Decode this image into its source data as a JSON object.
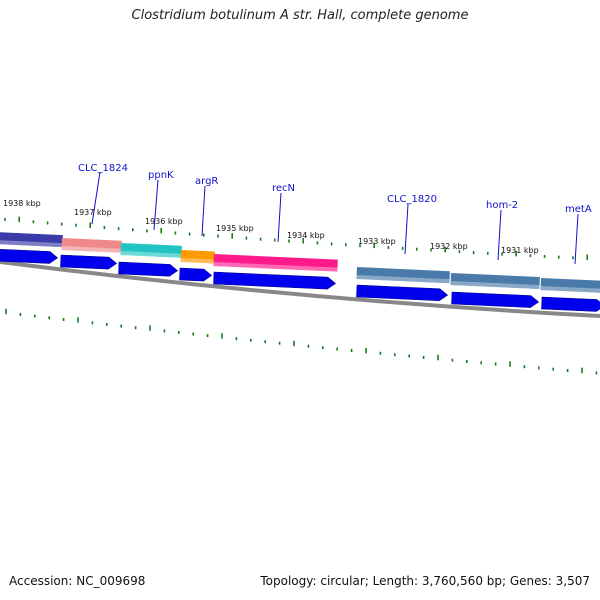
{
  "title": "Clostridium botulinum A str. Hall, complete genome",
  "accession": "Accession: NC_009698",
  "summary": "Topology: circular; Length: 3,760,560 bp; Genes: 3,507",
  "colors": {
    "forward_arrows": "#0000ee",
    "tick": "#1a7a1a",
    "label": "#1010cc",
    "backbone": "#888888",
    "gene_colors": {
      "navy": "#3a3aa8",
      "salmon": "#f08a8a",
      "teal": "#20c4c4",
      "orange": "#ff9900",
      "magenta": "#ff1a8c",
      "steelblue": "#4a7aaa"
    }
  },
  "position_labels": [
    "1938 kbp",
    "1937 kbp",
    "1936 kbp",
    "1935 kbp",
    "1934 kbp",
    "1933 kbp",
    "1932 kbp",
    "1931 kbp"
  ],
  "gene_labels": [
    "CLC_1824",
    "ppnK",
    "argR",
    "recN",
    "CLC_1820",
    "hom-2",
    "metA"
  ],
  "gene_blocks": [
    {
      "name": "navy-gene",
      "color": "navy"
    },
    {
      "name": "salmon-gene",
      "color": "salmon"
    },
    {
      "name": "teal-gene",
      "color": "teal"
    },
    {
      "name": "orange-gene",
      "color": "orange"
    },
    {
      "name": "recN-gene",
      "color": "magenta"
    },
    {
      "name": "clc1820-gene",
      "color": "steelblue"
    },
    {
      "name": "hom2-gene",
      "color": "steelblue"
    },
    {
      "name": "metA-gene",
      "color": "steelblue"
    }
  ]
}
